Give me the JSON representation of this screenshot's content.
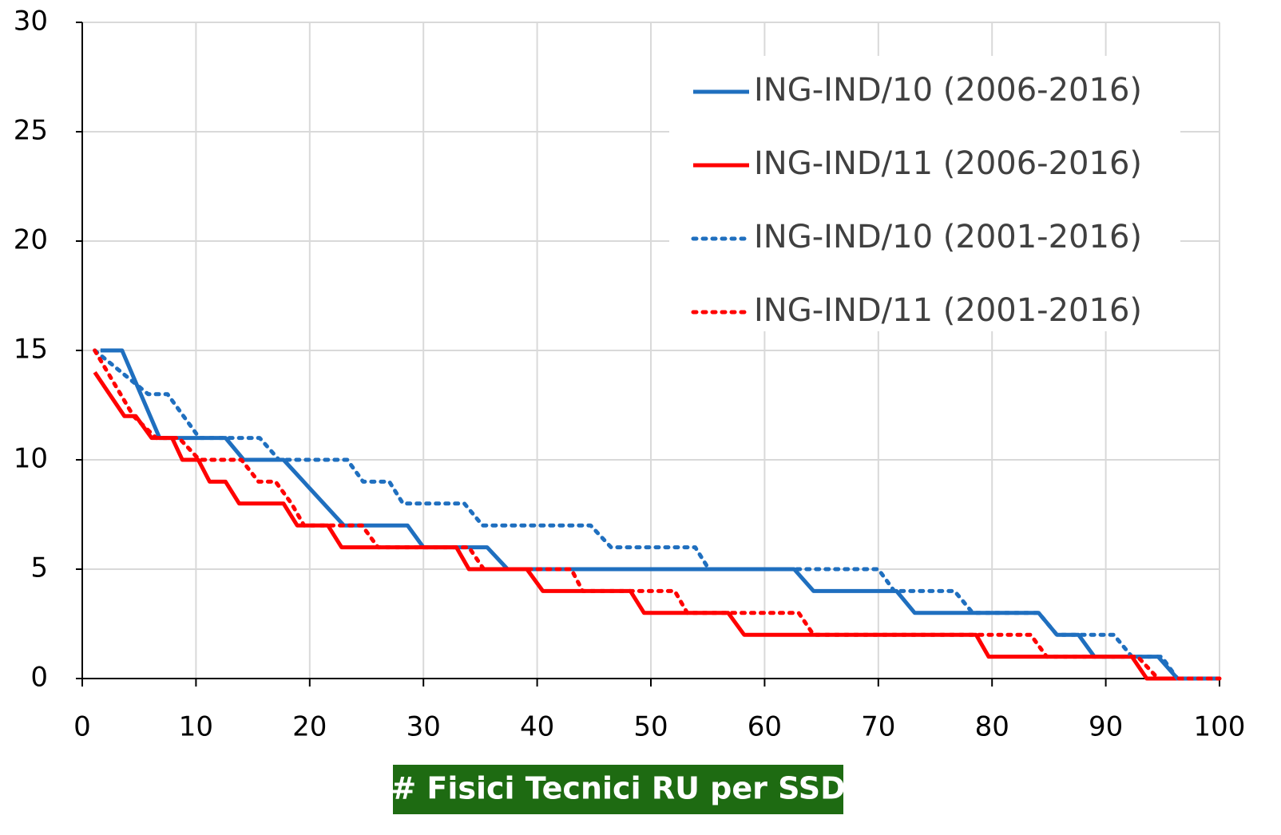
{
  "chart_data": {
    "type": "line",
    "x_label": "# Fisici Tecnici RU per SSD",
    "xlim": [
      0,
      100
    ],
    "xticks": [
      0,
      10,
      20,
      30,
      40,
      50,
      60,
      70,
      80,
      90,
      100
    ],
    "ylim": [
      0,
      30
    ],
    "yticks": [
      0,
      5,
      10,
      15,
      20,
      25,
      30
    ],
    "grid": true,
    "legend": "upper right",
    "series": [
      {
        "name": "ING-IND/10 (2006-2016)",
        "color": "#1f6fbf",
        "style": "solid",
        "x": [
          1.6,
          3.5,
          6.8,
          12.6,
          14.2,
          17.7,
          23,
          28.6,
          30,
          35.6,
          37.4,
          62.6,
          64.3,
          71.6,
          73.2,
          84.1,
          85.7,
          87.6,
          89,
          94.6,
          96.3,
          100
        ],
        "values": [
          15,
          15,
          11,
          11,
          10,
          10,
          7,
          7,
          6,
          6,
          5,
          5,
          4,
          4,
          3,
          3,
          2,
          2,
          1,
          1,
          0,
          0
        ]
      },
      {
        "name": "ING-IND/11 (2006-2016)",
        "color": "#ff0000",
        "style": "solid",
        "x": [
          1.1,
          3.7,
          4.7,
          6.1,
          7.9,
          8.8,
          10.2,
          11.2,
          12.6,
          13.8,
          17.7,
          18.9,
          21.6,
          22.8,
          32.9,
          34,
          39.1,
          40.5,
          48.2,
          49.4,
          56.8,
          58.2,
          78.6,
          79.7,
          92.3,
          93.6,
          100
        ],
        "values": [
          14,
          12,
          12,
          11,
          11,
          10,
          10,
          9,
          9,
          8,
          8,
          7,
          7,
          6,
          6,
          5,
          5,
          4,
          4,
          3,
          3,
          2,
          2,
          1,
          1,
          0,
          0
        ]
      },
      {
        "name": "ING-IND/10 (2001-2016)",
        "color": "#1f6fbf",
        "style": "dotted",
        "x": [
          1.1,
          5.8,
          7.5,
          10.3,
          15.6,
          17.3,
          23.3,
          24.7,
          27,
          28.2,
          33.6,
          35.2,
          44.7,
          46.5,
          53.9,
          55.1,
          70,
          71.4,
          76.7,
          78.3,
          84.1,
          85.7,
          90.7,
          92.3,
          94.9,
          96.3,
          100
        ],
        "values": [
          15,
          13,
          13,
          11,
          11,
          10,
          10,
          9,
          9,
          8,
          8,
          7,
          7,
          6,
          6,
          5,
          5,
          4,
          4,
          3,
          3,
          2,
          2,
          1,
          1,
          0,
          0
        ]
      },
      {
        "name": "ING-IND/11 (2001-2016)",
        "color": "#ff0000",
        "style": "dotted",
        "x": [
          1.1,
          4.5,
          6.5,
          8.5,
          10.3,
          14,
          15.5,
          17,
          18.4,
          19.5,
          24.6,
          26,
          34,
          35.3,
          43,
          44,
          52.1,
          53.2,
          63,
          64.3,
          83.4,
          84.8,
          91.8,
          92.8,
          94.6,
          100
        ],
        "values": [
          15,
          12,
          11,
          11,
          10,
          10,
          9,
          9,
          8,
          7,
          7,
          6,
          6,
          5,
          5,
          4,
          4,
          3,
          3,
          2,
          2,
          1,
          1,
          1,
          0,
          0
        ]
      }
    ]
  }
}
